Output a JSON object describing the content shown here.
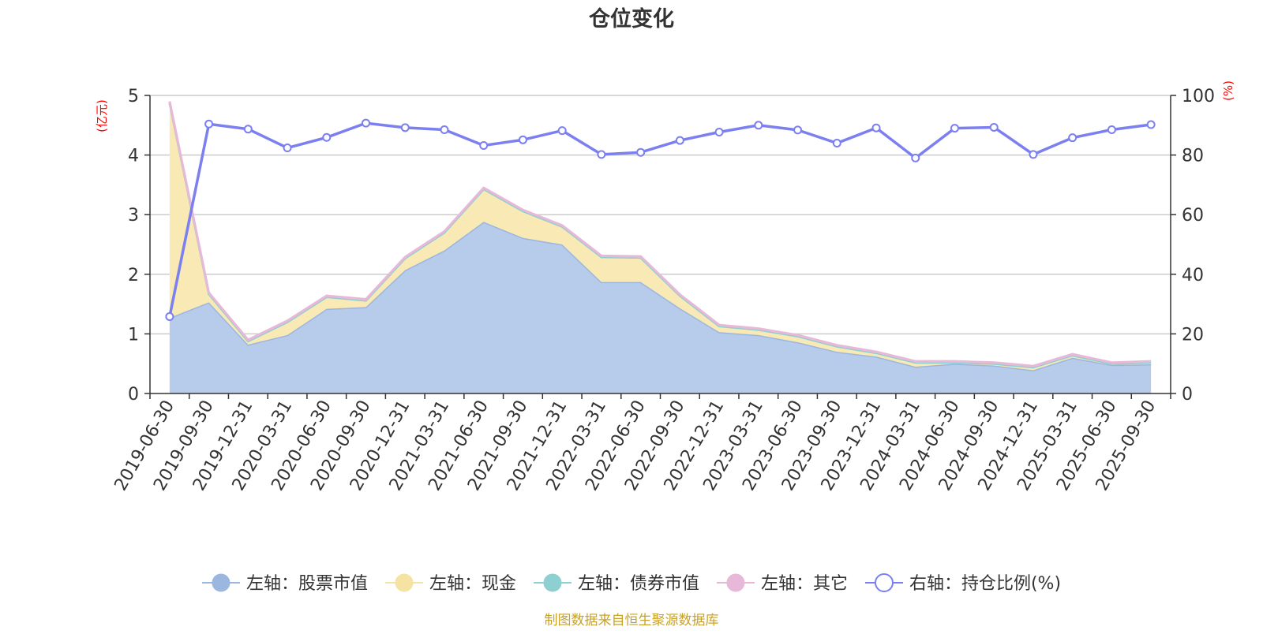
{
  "chart_data": {
    "type": "area",
    "title": "仓位变化",
    "left_axis_label": "(亿元)",
    "right_axis_label": "(%)",
    "ylim_left": [
      0,
      5
    ],
    "yticks_left": [
      0,
      1,
      2,
      3,
      4,
      5
    ],
    "ylim_right": [
      0,
      100
    ],
    "yticks_right": [
      0,
      20,
      40,
      60,
      80,
      100
    ],
    "grid": true,
    "categories": [
      "2019-06-30",
      "2019-09-30",
      "2019-12-31",
      "2020-03-31",
      "2020-06-30",
      "2020-09-30",
      "2020-12-31",
      "2021-03-31",
      "2021-06-30",
      "2021-09-30",
      "2021-12-31",
      "2022-03-31",
      "2022-06-30",
      "2022-09-30",
      "2022-12-31",
      "2023-03-31",
      "2023-06-30",
      "2023-09-30",
      "2023-12-31",
      "2024-03-31",
      "2024-06-30",
      "2024-09-30",
      "2024-12-31",
      "2025-03-31",
      "2025-06-30",
      "2025-09-30"
    ],
    "series": [
      {
        "name": "左轴：股票市值",
        "axis": "left",
        "stack": true,
        "color": "#9bb7e0",
        "fill": "#b7cbea",
        "values": [
          1.27,
          1.53,
          0.82,
          0.98,
          1.42,
          1.45,
          2.07,
          2.4,
          2.88,
          2.61,
          2.5,
          1.87,
          1.87,
          1.43,
          1.03,
          0.98,
          0.86,
          0.7,
          0.62,
          0.45,
          0.5,
          0.47,
          0.39,
          0.6,
          0.48,
          0.49
        ]
      },
      {
        "name": "左轴：现金",
        "axis": "left",
        "stack": true,
        "color": "#f6e3a3",
        "fill": "#f8e9b5",
        "values": [
          3.61,
          0.14,
          0.06,
          0.22,
          0.2,
          0.11,
          0.2,
          0.3,
          0.55,
          0.45,
          0.3,
          0.42,
          0.41,
          0.21,
          0.1,
          0.09,
          0.1,
          0.09,
          0.06,
          0.07,
          0.02,
          0.03,
          0.05,
          0.04,
          0.02,
          0.03
        ]
      },
      {
        "name": "左轴：债券市值",
        "axis": "left",
        "stack": true,
        "color": "#8ecfd2",
        "fill": "#a9dcdf",
        "values": [
          0,
          0,
          0,
          0,
          0,
          0,
          0,
          0,
          0,
          0,
          0,
          0,
          0,
          0,
          0,
          0,
          0,
          0,
          0,
          0,
          0,
          0,
          0,
          0,
          0,
          0
        ]
      },
      {
        "name": "左轴：其它",
        "axis": "left",
        "stack": true,
        "color": "#e8b8d9",
        "fill": "#f0cde5",
        "values": [
          0.02,
          0.02,
          0.02,
          0.02,
          0.02,
          0.02,
          0.02,
          0.02,
          0.02,
          0.02,
          0.02,
          0.02,
          0.02,
          0.02,
          0.02,
          0.02,
          0.02,
          0.02,
          0.02,
          0.02,
          0.02,
          0.02,
          0.02,
          0.02,
          0.02,
          0.02
        ]
      },
      {
        "name": "右轴：持仓比例(%)",
        "axis": "right",
        "stack": false,
        "color": "#7b7ff0",
        "values": [
          25.8,
          90.4,
          88.7,
          82.4,
          85.9,
          90.7,
          89.2,
          88.5,
          83.2,
          85.1,
          88.2,
          80.2,
          80.9,
          84.9,
          87.7,
          90.0,
          88.4,
          84.0,
          89.1,
          79.0,
          89.0,
          89.3,
          80.2,
          85.8,
          88.5,
          90.2
        ]
      }
    ],
    "source_note": "制图数据来自恒生聚源数据库"
  }
}
